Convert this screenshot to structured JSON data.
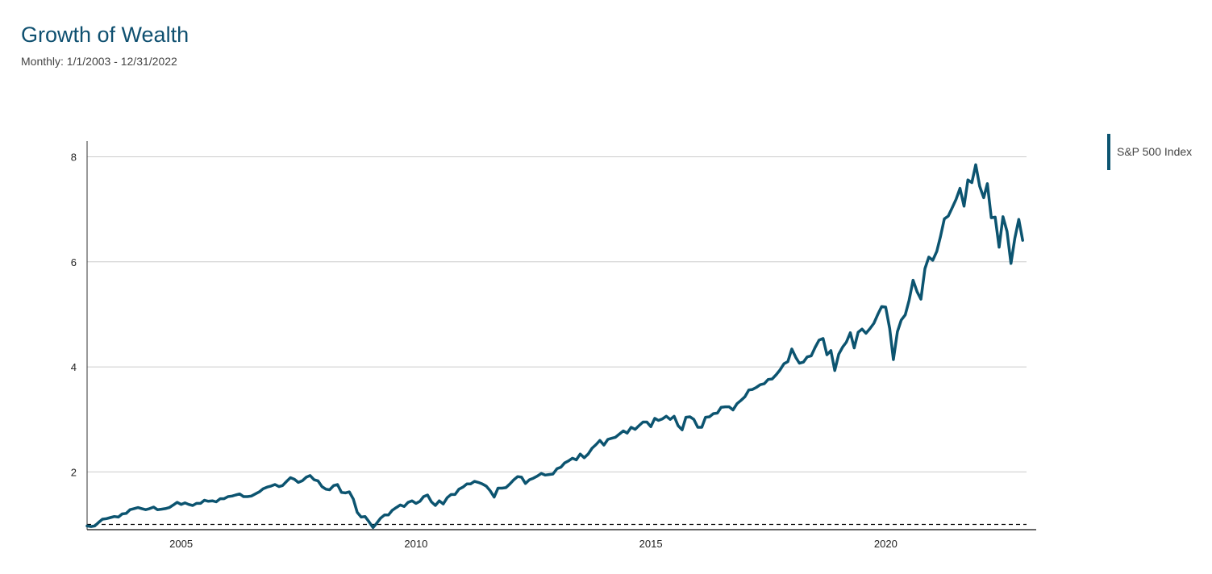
{
  "header": {
    "title": "Growth of Wealth",
    "subtitle": "Monthly: 1/1/2003 - 12/31/2022"
  },
  "colors": {
    "series": "#0c5470",
    "title": "#0f5070",
    "grid": "#cccccc",
    "axis": "#333333",
    "baseline": "#000000"
  },
  "chart_data": {
    "type": "line",
    "title": "Growth of Wealth",
    "subtitle": "Monthly: 1/1/2003 - 12/31/2022",
    "xlabel": "",
    "ylabel": "",
    "xlim": [
      "2003-01-01",
      "2022-12-31"
    ],
    "ylim": [
      0.9,
      8.3
    ],
    "x_ticks": [
      "2005",
      "2010",
      "2015",
      "2020"
    ],
    "y_ticks": [
      2,
      4,
      6,
      8
    ],
    "grid": "horizontal",
    "legend_position": "right",
    "reference_line": {
      "y": 1.0,
      "style": "dashed"
    },
    "series": [
      {
        "name": "S&P 500 Index",
        "x": [
          "2003-01",
          "2003-02",
          "2003-03",
          "2003-04",
          "2003-05",
          "2003-06",
          "2003-07",
          "2003-08",
          "2003-09",
          "2003-10",
          "2003-11",
          "2003-12",
          "2004-01",
          "2004-02",
          "2004-03",
          "2004-04",
          "2004-05",
          "2004-06",
          "2004-07",
          "2004-08",
          "2004-09",
          "2004-10",
          "2004-11",
          "2004-12",
          "2005-01",
          "2005-02",
          "2005-03",
          "2005-04",
          "2005-05",
          "2005-06",
          "2005-07",
          "2005-08",
          "2005-09",
          "2005-10",
          "2005-11",
          "2005-12",
          "2006-01",
          "2006-02",
          "2006-03",
          "2006-04",
          "2006-05",
          "2006-06",
          "2006-07",
          "2006-08",
          "2006-09",
          "2006-10",
          "2006-11",
          "2006-12",
          "2007-01",
          "2007-02",
          "2007-03",
          "2007-04",
          "2007-05",
          "2007-06",
          "2007-07",
          "2007-08",
          "2007-09",
          "2007-10",
          "2007-11",
          "2007-12",
          "2008-01",
          "2008-02",
          "2008-03",
          "2008-04",
          "2008-05",
          "2008-06",
          "2008-07",
          "2008-08",
          "2008-09",
          "2008-10",
          "2008-11",
          "2008-12",
          "2009-01",
          "2009-02",
          "2009-03",
          "2009-04",
          "2009-05",
          "2009-06",
          "2009-07",
          "2009-08",
          "2009-09",
          "2009-10",
          "2009-11",
          "2009-12",
          "2010-01",
          "2010-02",
          "2010-03",
          "2010-04",
          "2010-05",
          "2010-06",
          "2010-07",
          "2010-08",
          "2010-09",
          "2010-10",
          "2010-11",
          "2010-12",
          "2011-01",
          "2011-02",
          "2011-03",
          "2011-04",
          "2011-05",
          "2011-06",
          "2011-07",
          "2011-08",
          "2011-09",
          "2011-10",
          "2011-11",
          "2011-12",
          "2012-01",
          "2012-02",
          "2012-03",
          "2012-04",
          "2012-05",
          "2012-06",
          "2012-07",
          "2012-08",
          "2012-09",
          "2012-10",
          "2012-11",
          "2012-12",
          "2013-01",
          "2013-02",
          "2013-03",
          "2013-04",
          "2013-05",
          "2013-06",
          "2013-07",
          "2013-08",
          "2013-09",
          "2013-10",
          "2013-11",
          "2013-12",
          "2014-01",
          "2014-02",
          "2014-03",
          "2014-04",
          "2014-05",
          "2014-06",
          "2014-07",
          "2014-08",
          "2014-09",
          "2014-10",
          "2014-11",
          "2014-12",
          "2015-01",
          "2015-02",
          "2015-03",
          "2015-04",
          "2015-05",
          "2015-06",
          "2015-07",
          "2015-08",
          "2015-09",
          "2015-10",
          "2015-11",
          "2015-12",
          "2016-01",
          "2016-02",
          "2016-03",
          "2016-04",
          "2016-05",
          "2016-06",
          "2016-07",
          "2016-08",
          "2016-09",
          "2016-10",
          "2016-11",
          "2016-12",
          "2017-01",
          "2017-02",
          "2017-03",
          "2017-04",
          "2017-05",
          "2017-06",
          "2017-07",
          "2017-08",
          "2017-09",
          "2017-10",
          "2017-11",
          "2017-12",
          "2018-01",
          "2018-02",
          "2018-03",
          "2018-04",
          "2018-05",
          "2018-06",
          "2018-07",
          "2018-08",
          "2018-09",
          "2018-10",
          "2018-11",
          "2018-12",
          "2019-01",
          "2019-02",
          "2019-03",
          "2019-04",
          "2019-05",
          "2019-06",
          "2019-07",
          "2019-08",
          "2019-09",
          "2019-10",
          "2019-11",
          "2019-12",
          "2020-01",
          "2020-02",
          "2020-03",
          "2020-04",
          "2020-05",
          "2020-06",
          "2020-07",
          "2020-08",
          "2020-09",
          "2020-10",
          "2020-11",
          "2020-12",
          "2021-01",
          "2021-02",
          "2021-03",
          "2021-04",
          "2021-05",
          "2021-06",
          "2021-07",
          "2021-08",
          "2021-09",
          "2021-10",
          "2021-11",
          "2021-12",
          "2022-01",
          "2022-02",
          "2022-03",
          "2022-04",
          "2022-05",
          "2022-06",
          "2022-07",
          "2022-08",
          "2022-09",
          "2022-10",
          "2022-11",
          "2022-12"
        ],
        "values": [
          0.97,
          0.96,
          0.97,
          1.04,
          1.1,
          1.11,
          1.13,
          1.15,
          1.14,
          1.2,
          1.21,
          1.28,
          1.3,
          1.32,
          1.3,
          1.28,
          1.3,
          1.33,
          1.28,
          1.29,
          1.3,
          1.32,
          1.37,
          1.42,
          1.38,
          1.41,
          1.38,
          1.36,
          1.4,
          1.4,
          1.46,
          1.44,
          1.45,
          1.43,
          1.49,
          1.49,
          1.53,
          1.54,
          1.56,
          1.58,
          1.53,
          1.53,
          1.54,
          1.58,
          1.62,
          1.68,
          1.71,
          1.73,
          1.76,
          1.72,
          1.74,
          1.82,
          1.89,
          1.86,
          1.8,
          1.83,
          1.9,
          1.93,
          1.85,
          1.83,
          1.72,
          1.67,
          1.66,
          1.74,
          1.76,
          1.61,
          1.6,
          1.62,
          1.48,
          1.23,
          1.14,
          1.15,
          1.05,
          0.94,
          1.02,
          1.12,
          1.18,
          1.18,
          1.27,
          1.32,
          1.37,
          1.34,
          1.42,
          1.45,
          1.4,
          1.44,
          1.53,
          1.56,
          1.43,
          1.36,
          1.45,
          1.39,
          1.51,
          1.57,
          1.57,
          1.67,
          1.71,
          1.77,
          1.77,
          1.82,
          1.8,
          1.77,
          1.73,
          1.64,
          1.52,
          1.69,
          1.69,
          1.7,
          1.77,
          1.85,
          1.91,
          1.9,
          1.78,
          1.85,
          1.88,
          1.92,
          1.97,
          1.94,
          1.95,
          1.96,
          2.06,
          2.09,
          2.17,
          2.21,
          2.26,
          2.23,
          2.34,
          2.27,
          2.34,
          2.45,
          2.52,
          2.6,
          2.51,
          2.62,
          2.64,
          2.66,
          2.72,
          2.78,
          2.74,
          2.85,
          2.81,
          2.88,
          2.95,
          2.95,
          2.86,
          3.02,
          2.98,
          3.01,
          3.06,
          3.0,
          3.06,
          2.88,
          2.8,
          3.04,
          3.05,
          3.0,
          2.85,
          2.85,
          3.04,
          3.05,
          3.11,
          3.12,
          3.23,
          3.24,
          3.24,
          3.18,
          3.3,
          3.36,
          3.43,
          3.56,
          3.57,
          3.61,
          3.66,
          3.68,
          3.76,
          3.77,
          3.85,
          3.94,
          4.06,
          4.1,
          4.34,
          4.18,
          4.07,
          4.09,
          4.19,
          4.21,
          4.37,
          4.51,
          4.54,
          4.23,
          4.31,
          3.93,
          4.24,
          4.38,
          4.47,
          4.65,
          4.36,
          4.66,
          4.72,
          4.64,
          4.73,
          4.83,
          5.0,
          5.15,
          5.14,
          4.73,
          4.14,
          4.67,
          4.89,
          4.99,
          5.27,
          5.65,
          5.43,
          5.29,
          5.87,
          6.09,
          6.03,
          6.2,
          6.47,
          6.82,
          6.87,
          7.03,
          7.19,
          7.4,
          7.06,
          7.56,
          7.51,
          7.85,
          7.44,
          7.22,
          7.49,
          6.84,
          6.85,
          6.28,
          6.86,
          6.58,
          5.97,
          6.45,
          6.81,
          6.41
        ]
      }
    ]
  }
}
